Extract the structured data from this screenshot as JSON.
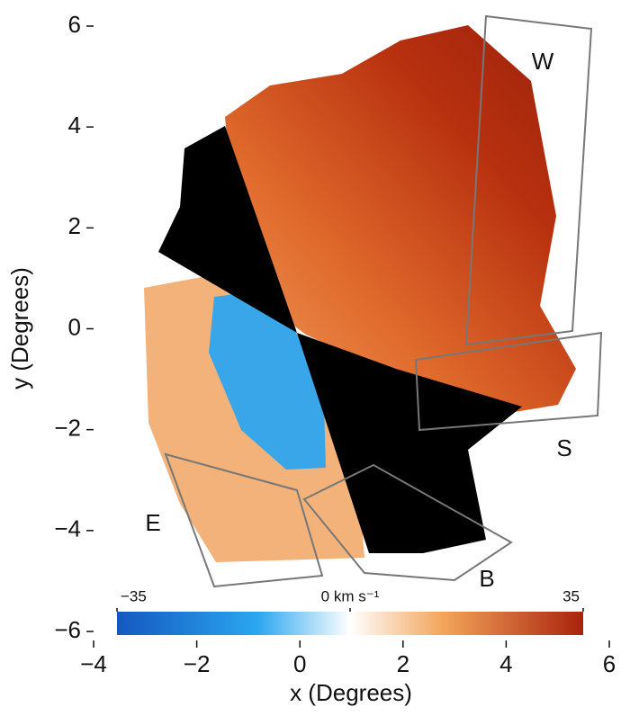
{
  "chart_data": {
    "type": "map",
    "xlabel": "x (Degrees)",
    "ylabel": "y (Degrees)",
    "xlim": [
      -4,
      6
    ],
    "ylim": [
      -6,
      6
    ],
    "xticks": [
      {
        "value": -4,
        "label": "−4"
      },
      {
        "value": -2,
        "label": "−2"
      },
      0,
      2,
      4,
      6
    ],
    "yticks": [
      {
        "value": -6,
        "label": "−6"
      },
      {
        "value": -4,
        "label": "−4"
      },
      {
        "value": -2,
        "label": "−2"
      },
      0,
      2,
      4,
      6
    ],
    "region_labels": [
      "W",
      "S",
      "E",
      "B"
    ],
    "colorbar": {
      "lim": [
        -35,
        35
      ],
      "ticks": [
        {
          "value": -35,
          "label": "−35"
        },
        {
          "value": 0,
          "label": "0 km s⁻¹"
        },
        35
      ]
    }
  }
}
